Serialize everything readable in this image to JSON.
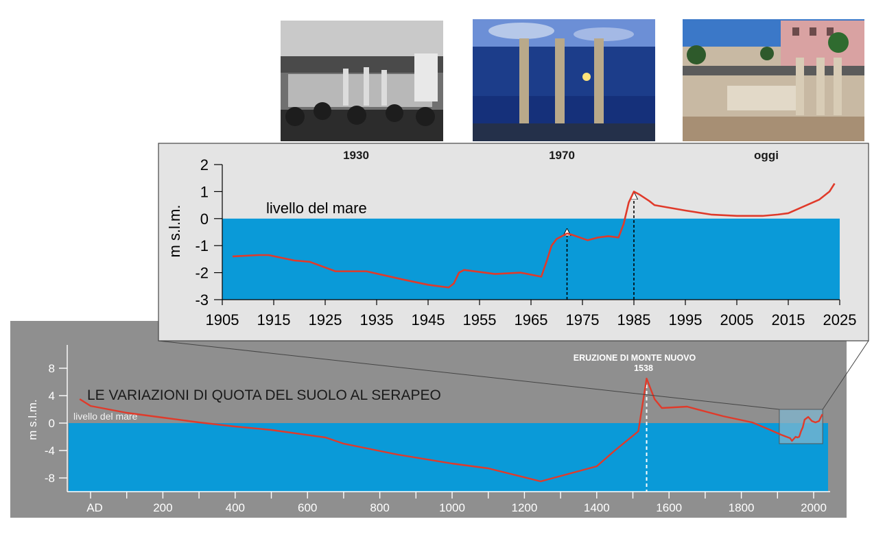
{
  "photos": [
    {
      "label": "1930",
      "icon": "serapeo-photo-1930-bw"
    },
    {
      "label": "1970",
      "icon": "serapeo-photo-1970-night"
    },
    {
      "label": "oggi",
      "icon": "serapeo-photo-today"
    }
  ],
  "colors": {
    "sea": "#0a9ad8",
    "line": "#e03a2a",
    "main_panel_bg": "#8f8f8f",
    "inset_bg": "#e4e4e4",
    "highlight_box": "#7fb6cf"
  },
  "chart_data": [
    {
      "type": "line",
      "id": "inset",
      "ylabel": "m s.l.m.",
      "sea_label": "livello del mare",
      "xlim": [
        1905,
        2025
      ],
      "ylim": [
        -3,
        2
      ],
      "xticks": [
        1905,
        1915,
        1925,
        1935,
        1945,
        1955,
        1965,
        1975,
        1985,
        1995,
        2005,
        2015,
        2025
      ],
      "yticks": [
        2,
        1,
        0,
        -1,
        -2,
        -3
      ],
      "sea_level": 0,
      "series": [
        {
          "x": [
            1907,
            1912,
            1914,
            1919,
            1922,
            1927,
            1933,
            1940,
            1945,
            1949,
            1950,
            1951,
            1952,
            1956,
            1958,
            1963,
            1967,
            1968,
            1969,
            1970,
            1972,
            1973,
            1976,
            1978,
            1980,
            1982,
            1983,
            1984,
            1985,
            1986,
            1988,
            1989,
            1995,
            2000,
            2005,
            2010,
            2013,
            2015,
            2018,
            2021,
            2023,
            2024
          ],
          "y": [
            -1.4,
            -1.35,
            -1.35,
            -1.55,
            -1.6,
            -1.95,
            -1.95,
            -2.25,
            -2.45,
            -2.55,
            -2.4,
            -2.0,
            -1.9,
            -2.0,
            -2.05,
            -2.0,
            -2.15,
            -1.6,
            -1.0,
            -0.75,
            -0.55,
            -0.6,
            -0.8,
            -0.7,
            -0.65,
            -0.7,
            -0.2,
            0.6,
            1.0,
            0.9,
            0.65,
            0.5,
            0.3,
            0.15,
            0.1,
            0.1,
            0.15,
            0.2,
            0.45,
            0.7,
            1.0,
            1.3
          ]
        }
      ],
      "arrows": [
        {
          "x": 1972,
          "from_y": -3.0,
          "to_y": -0.5
        },
        {
          "x": 1985,
          "from_y": -3.0,
          "to_y": 0.85
        }
      ]
    },
    {
      "type": "line",
      "id": "main",
      "title": "LE VARIAZIONI DI QUOTA DEL SUOLO AL SERAPEO",
      "ylabel": "m s.l.m.",
      "sea_label": "livello del mare",
      "annotation": {
        "text_line1": "ERUZIONE DI MONTE NUOVO",
        "text_line2": "1538",
        "x": 1538
      },
      "xlim": [
        -50,
        2050
      ],
      "ylim": [
        -10,
        10
      ],
      "xticks": [
        0,
        200,
        400,
        600,
        800,
        1000,
        1200,
        1400,
        1600,
        1800,
        2000
      ],
      "xticklabels": [
        "AD",
        "200",
        "400",
        "600",
        "800",
        "1000",
        "1200",
        "1400",
        "1600",
        "1800",
        "2000"
      ],
      "yticks": [
        8,
        4,
        0,
        -4,
        -8
      ],
      "sea_level": 0,
      "series": [
        {
          "x": [
            -30,
            0,
            100,
            200,
            300,
            400,
            500,
            650,
            700,
            850,
            1000,
            1100,
            1245,
            1400,
            1450,
            1515,
            1538,
            1560,
            1580,
            1650,
            1750,
            1830,
            1880,
            1910,
            1935,
            1940,
            1950,
            1955,
            1960,
            1965,
            1970,
            1975,
            1985,
            1995,
            2005,
            2015,
            2024
          ],
          "y": [
            3.5,
            2.5,
            1.5,
            0.8,
            0.1,
            -0.5,
            -1.0,
            -2.1,
            -3.0,
            -4.6,
            -5.9,
            -6.6,
            -8.5,
            -6.3,
            -4.0,
            -1.2,
            6.5,
            3.5,
            2.2,
            2.4,
            1.0,
            0.1,
            -1.0,
            -1.7,
            -2.2,
            -2.6,
            -2.0,
            -2.1,
            -2.0,
            -1.2,
            -0.6,
            0.5,
            0.9,
            0.3,
            0.1,
            0.3,
            1.3
          ]
        }
      ]
    }
  ]
}
